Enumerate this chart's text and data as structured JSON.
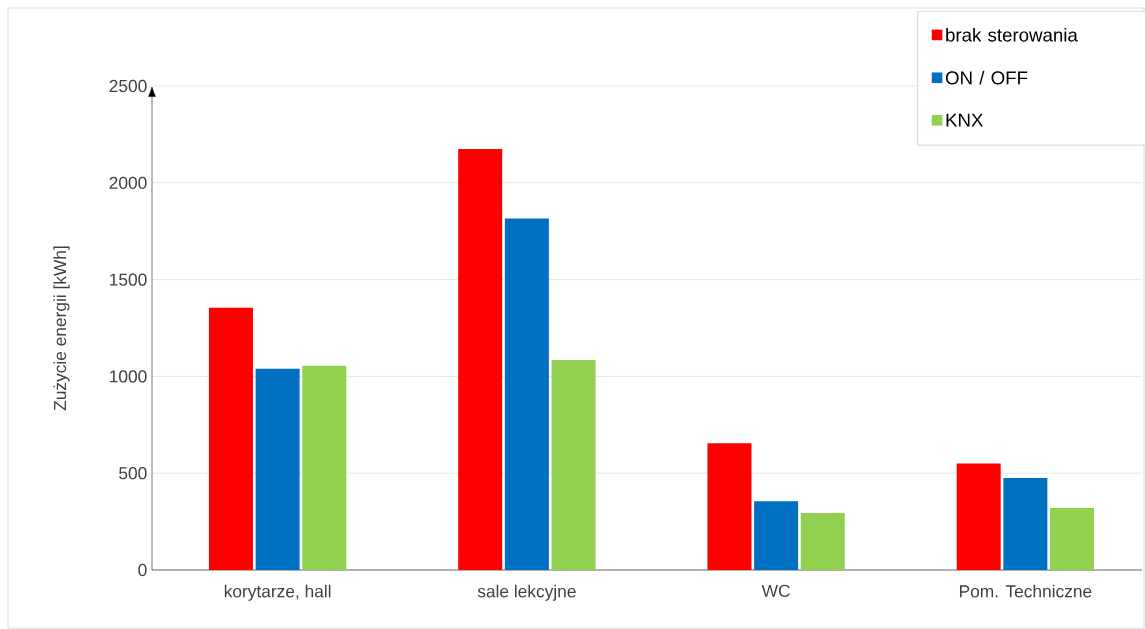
{
  "chart_data": {
    "type": "bar",
    "ylabel": "Zużycie energii [kWh]",
    "categories": [
      "korytarze, hall",
      "sale lekcyjne",
      "WC",
      "Pom. Techniczne"
    ],
    "series": [
      {
        "name": "brak sterowania",
        "color": "#ff0000",
        "values": [
          1355,
          2175,
          655,
          550
        ]
      },
      {
        "name": "ON / OFF",
        "color": "#0070c0",
        "values": [
          1040,
          1815,
          355,
          475
        ]
      },
      {
        "name": "KNX",
        "color": "#92d050",
        "values": [
          1055,
          1085,
          295,
          320
        ]
      }
    ],
    "ylim": [
      0,
      2500
    ],
    "yticks": [
      0,
      500,
      1000,
      1500,
      2000,
      2500
    ],
    "grid": "y",
    "legend": "top right"
  }
}
